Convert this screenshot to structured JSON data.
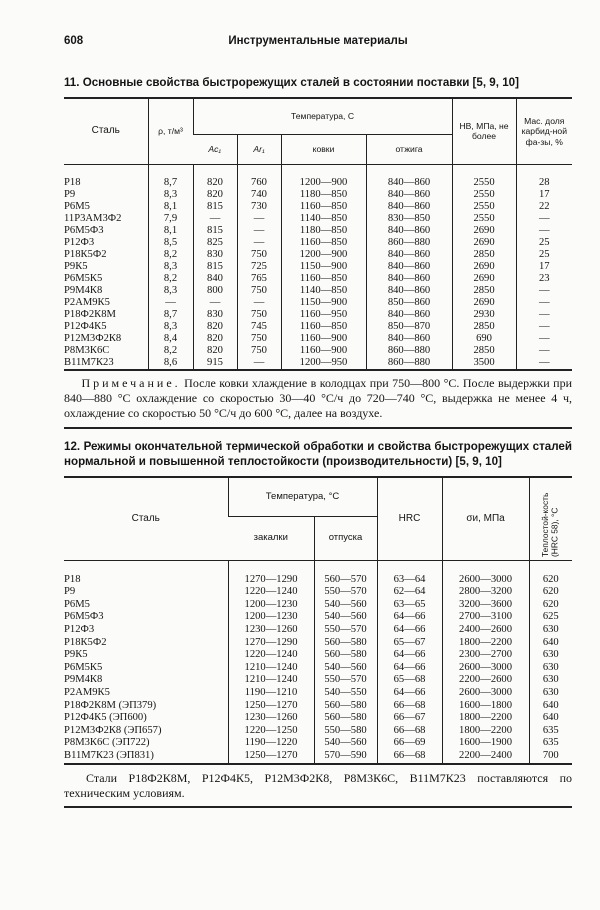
{
  "running_head": {
    "page_number": "608",
    "title": "Инструментальные материалы"
  },
  "table1": {
    "caption": "11. Основные свойства быстрорежущих сталей в состоянии поставки [5, 9, 10]",
    "headers": {
      "steel": "Сталь",
      "density": "ρ, т/м³",
      "temperature": "Температура, С",
      "ac": "Ac₁",
      "ar": "Ar₁",
      "forging": "ковки",
      "annealing": "отжига",
      "hb": "HB, МПа, не более",
      "carbide": "Мас. доля карбид-ной фа-зы, %"
    },
    "rows": [
      [
        "Р18",
        "8,7",
        "820",
        "760",
        "1200—900",
        "840—860",
        "2550",
        "28"
      ],
      [
        "Р9",
        "8,3",
        "820",
        "740",
        "1180—850",
        "840—860",
        "2550",
        "17"
      ],
      [
        "Р6М5",
        "8,1",
        "815",
        "730",
        "1160—850",
        "840—860",
        "2550",
        "22"
      ],
      [
        "11Р3АМ3Ф2",
        "7,9",
        "—",
        "—",
        "1140—850",
        "830—850",
        "2550",
        "—"
      ],
      [
        "Р6М5Ф3",
        "8,1",
        "815",
        "—",
        "1180—850",
        "840—860",
        "2690",
        "—"
      ],
      [
        "Р12Ф3",
        "8,5",
        "825",
        "—",
        "1160—850",
        "860—880",
        "2690",
        "25"
      ],
      [
        "Р18К5Ф2",
        "8,2",
        "830",
        "750",
        "1200—900",
        "840—860",
        "2850",
        "25"
      ],
      [
        "Р9К5",
        "8,3",
        "815",
        "725",
        "1150—900",
        "840—860",
        "2690",
        "17"
      ],
      [
        "Р6М5К5",
        "8,2",
        "840",
        "765",
        "1160—850",
        "840—860",
        "2690",
        "23"
      ],
      [
        "Р9М4К8",
        "8,3",
        "800",
        "750",
        "1140—850",
        "840—860",
        "2850",
        "—"
      ],
      [
        "Р2АМ9К5",
        "—",
        "—",
        "—",
        "1150—900",
        "850—860",
        "2690",
        "—"
      ],
      [
        "Р18Ф2К8М",
        "8,7",
        "830",
        "750",
        "1160—950",
        "840—860",
        "2930",
        "—"
      ],
      [
        "Р12Ф4К5",
        "8,3",
        "820",
        "745",
        "1160—850",
        "850—870",
        "2850",
        "—"
      ],
      [
        "Р12М3Ф2К8",
        "8,4",
        "820",
        "750",
        "1160—900",
        "840—860",
        "690",
        "—"
      ],
      [
        "Р8М3К6С",
        "8,2",
        "820",
        "750",
        "1160—900",
        "860—880",
        "2850",
        "—"
      ],
      [
        "В11М7К23",
        "8,6",
        "915",
        "—",
        "1200—950",
        "860—880",
        "3500",
        "—"
      ]
    ],
    "note_label": "Примечание.",
    "note_text": " После ковки  хлаждение в колодцах при 750—800 °С. После выдержки при 840—880 °С охлаждение со скоростью 30—40 °С/ч до 720—740 °С, выдержка не менее 4 ч, охлаждение со скоростью 50 °С/ч до 600 °С, далее на воздухе."
  },
  "table2": {
    "caption": "12. Режимы окончательной термической обработки и свойства быстрорежущих сталей нормальной и повышенной теплостойкости (производительности) [5, 9, 10]",
    "headers": {
      "steel": "Сталь",
      "temperature": "Температура, °С",
      "quench": "закалки",
      "temper": "отпуска",
      "hrc": "HRC",
      "strength": "σи, МПа",
      "heat_resistance": "Теплостой-кость (HRC 58), °С"
    },
    "rows": [
      [
        "Р18",
        "1270—1290",
        "560—570",
        "63—64",
        "2600—3000",
        "620"
      ],
      [
        "Р9",
        "1220—1240",
        "550—570",
        "62—64",
        "2800—3200",
        "620"
      ],
      [
        "Р6М5",
        "1200—1230",
        "540—560",
        "63—65",
        "3200—3600",
        "620"
      ],
      [
        "Р6М5Ф3",
        "1200—1230",
        "540—560",
        "64—66",
        "2700—3100",
        "625"
      ],
      [
        "Р12Ф3",
        "1230—1260",
        "550—570",
        "64—66",
        "2400—2600",
        "630"
      ],
      [
        "Р18К5Ф2",
        "1270—1290",
        "560—580",
        "65—67",
        "1800—2200",
        "640"
      ],
      [
        "Р9К5",
        "1220—1240",
        "560—580",
        "64—66",
        "2300—2700",
        "630"
      ],
      [
        "Р6М5К5",
        "1210—1240",
        "540—560",
        "64—66",
        "2600—3000",
        "630"
      ],
      [
        "Р9М4К8",
        "1210—1240",
        "550—570",
        "65—68",
        "2200—2600",
        "630"
      ],
      [
        "Р2АМ9К5",
        "1190—1210",
        "540—550",
        "64—66",
        "2600—3000",
        "630"
      ],
      [
        "Р18Ф2К8М (ЭП379)",
        "1250—1270",
        "560—580",
        "66—68",
        "1600—1800",
        "640"
      ],
      [
        "Р12Ф4К5 (ЭП600)",
        "1230—1260",
        "560—580",
        "66—67",
        "1800—2200",
        "640"
      ],
      [
        "Р12М3Ф2К8 (ЭП657)",
        "1220—1250",
        "550—580",
        "66—68",
        "1800—2200",
        "635"
      ],
      [
        "Р8М3К6С (ЭП722)",
        "1190—1220",
        "540—560",
        "66—69",
        "1600—1900",
        "635"
      ],
      [
        "В11М7К23 (ЭП831)",
        "1250—1270",
        "570—590",
        "66—68",
        "2200—2400",
        "700"
      ]
    ],
    "note_text": "Стали Р18Ф2К8М, Р12Ф4К5, Р12М3Ф2К8, Р8М3К6С, В11М7К23 поставляются по техническим условиям."
  }
}
